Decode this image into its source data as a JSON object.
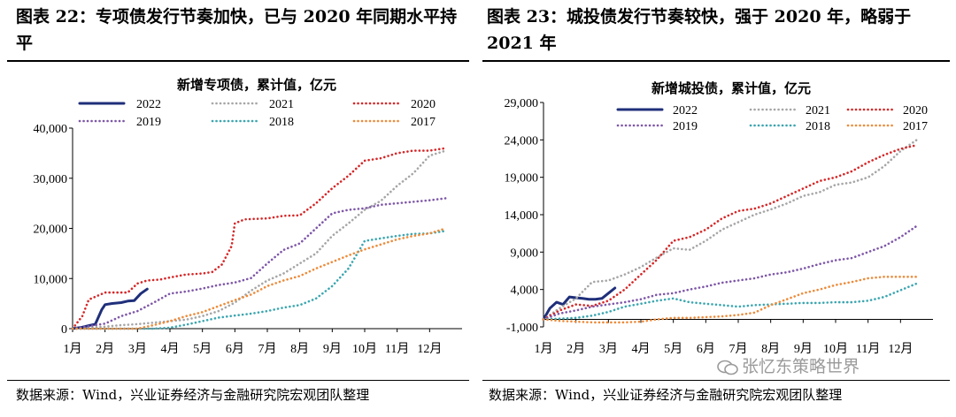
{
  "left": {
    "figure_title": "图表 22：专项债发行节奏加快，已与 2020 年同期水平持平",
    "source": "数据来源：Wind，兴业证券经济与金融研究院宏观团队整理"
  },
  "right": {
    "figure_title": "图表 23：城投债发行节奏较快，强于 2020 年，略弱于 2021 年",
    "source": "数据来源：Wind，兴业证券经济与金融研究院宏观团队整理"
  },
  "watermark": "张忆东策略世界",
  "colors": {
    "2022": "#1f2f7a",
    "2021": "#a6a6a6",
    "2020": "#d62728",
    "2019": "#7e57a8",
    "2018": "#3aa6b0",
    "2017": "#ed8b3a"
  },
  "chart_data": [
    {
      "type": "line",
      "title": "新增专项债，累计值，亿元",
      "categories": [
        "1月",
        "2月",
        "3月",
        "4月",
        "5月",
        "6月",
        "7月",
        "8月",
        "9月",
        "10月",
        "11月",
        "12月"
      ],
      "ylim": [
        0,
        40000
      ],
      "yticks": [
        0,
        10000,
        20000,
        30000,
        40000
      ],
      "ytick_labels": [
        "0",
        "10,000",
        "20,000",
        "30,000",
        "40,000"
      ],
      "legend_order": [
        "2022",
        "2021",
        "2020",
        "2019",
        "2018",
        "2017"
      ],
      "series": [
        {
          "name": "2022",
          "x": [
            1.0,
            1.3,
            1.5,
            1.7,
            1.9,
            2.0,
            2.2,
            2.5,
            2.7,
            2.9,
            3.1,
            3.3
          ],
          "values": [
            0,
            300,
            600,
            900,
            3800,
            4800,
            5000,
            5200,
            5500,
            5600,
            7000,
            7900
          ]
        },
        {
          "name": "2021",
          "x": [
            1,
            1.5,
            2,
            2.5,
            3,
            3.5,
            4,
            4.5,
            5,
            5.5,
            6,
            6.5,
            7,
            7.5,
            8,
            8.5,
            9,
            9.5,
            10,
            10.5,
            11,
            11.5,
            12,
            12.5
          ],
          "values": [
            0,
            200,
            400,
            700,
            900,
            1200,
            1500,
            1800,
            2500,
            3500,
            5200,
            7600,
            9600,
            11000,
            13000,
            15000,
            18500,
            21000,
            23700,
            25500,
            28500,
            31000,
            34500,
            35500
          ]
        },
        {
          "name": "2020",
          "x": [
            1,
            1.3,
            1.5,
            2,
            2.3,
            2.7,
            3,
            3.3,
            3.7,
            4,
            4.5,
            5,
            5.3,
            5.6,
            5.9,
            6,
            6.3,
            7,
            7.5,
            8,
            8.5,
            9,
            9.5,
            10,
            10.5,
            11,
            11.5,
            12,
            12.5
          ],
          "values": [
            0,
            2500,
            5800,
            7200,
            7200,
            7200,
            9000,
            9600,
            9800,
            10200,
            10800,
            11000,
            11300,
            12800,
            16500,
            21000,
            21800,
            22000,
            22500,
            22600,
            25000,
            28000,
            30500,
            33500,
            34000,
            35000,
            35500,
            35500,
            36000
          ]
        },
        {
          "name": "2019",
          "x": [
            1,
            1.5,
            2,
            2.5,
            3,
            3.5,
            4,
            4.5,
            5,
            5.5,
            6,
            6.5,
            7,
            7.5,
            8,
            8.5,
            9,
            9.5,
            10,
            10.5,
            11,
            11.5,
            12,
            12.5
          ],
          "values": [
            0,
            500,
            1000,
            2500,
            3500,
            5200,
            7000,
            7400,
            8000,
            8700,
            9200,
            10100,
            13000,
            15700,
            17000,
            20000,
            23000,
            23700,
            24000,
            24700,
            25000,
            25300,
            25600,
            26000
          ]
        },
        {
          "name": "2018",
          "x": [
            1,
            2,
            3,
            3.5,
            4,
            4.5,
            5,
            5.5,
            6,
            6.5,
            7,
            7.5,
            8,
            8.5,
            9,
            9.5,
            10,
            10.5,
            11,
            11.5,
            12,
            12.5
          ],
          "values": [
            0,
            0,
            0,
            0,
            200,
            800,
            1500,
            2200,
            2600,
            3000,
            3500,
            4200,
            4700,
            6000,
            8500,
            12000,
            17500,
            18000,
            18500,
            18900,
            19000,
            19500
          ]
        },
        {
          "name": "2017",
          "x": [
            1,
            2,
            3,
            3.5,
            4,
            4.5,
            5,
            5.5,
            6,
            6.5,
            7,
            7.5,
            8,
            8.5,
            9,
            9.5,
            10,
            10.5,
            11,
            11.5,
            12,
            12.5
          ],
          "values": [
            0,
            0,
            0,
            700,
            1500,
            2500,
            3300,
            4500,
            5700,
            6800,
            8500,
            9600,
            10500,
            12000,
            13300,
            14600,
            15800,
            16800,
            17800,
            18500,
            19000,
            20000
          ]
        }
      ]
    },
    {
      "type": "line",
      "title": "新增城投债，累计值，亿元",
      "categories": [
        "1月",
        "2月",
        "3月",
        "4月",
        "5月",
        "6月",
        "7月",
        "8月",
        "9月",
        "10月",
        "11月",
        "12月"
      ],
      "ylim": [
        -1000,
        29000
      ],
      "yticks": [
        -1000,
        4000,
        9000,
        14000,
        19000,
        24000,
        29000
      ],
      "ytick_labels": [
        "-1,000",
        "4,000",
        "9,000",
        "14,000",
        "19,000",
        "24,000",
        "29,000"
      ],
      "legend_order": [
        "2022",
        "2021",
        "2020",
        "2019",
        "2018",
        "2017"
      ],
      "series": [
        {
          "name": "2022",
          "x": [
            1.0,
            1.2,
            1.4,
            1.6,
            1.8,
            2.0,
            2.2,
            2.4,
            2.6,
            2.8,
            3.0,
            3.2
          ],
          "values": [
            0,
            1500,
            2300,
            2000,
            3000,
            2900,
            2800,
            2700,
            2700,
            2800,
            3500,
            4200
          ]
        },
        {
          "name": "2021",
          "x": [
            1,
            1.5,
            2,
            2.5,
            3,
            3.5,
            4,
            4.5,
            5,
            5.5,
            6,
            6.5,
            7,
            7.5,
            8,
            8.5,
            9,
            9.5,
            10,
            10.5,
            11,
            11.5,
            12,
            12.5
          ],
          "values": [
            0,
            1500,
            2800,
            5000,
            5200,
            6000,
            7000,
            8300,
            9500,
            9300,
            10500,
            12000,
            13000,
            14000,
            14700,
            15500,
            16500,
            17000,
            18000,
            18300,
            19000,
            20500,
            22500,
            24000
          ]
        },
        {
          "name": "2020",
          "x": [
            1,
            1.5,
            2,
            2.5,
            3,
            3.5,
            4,
            4.5,
            5,
            5.5,
            6,
            6.5,
            7,
            7.5,
            8,
            8.5,
            9,
            9.5,
            10,
            10.5,
            11,
            11.5,
            12,
            12.5
          ],
          "values": [
            0,
            1200,
            2000,
            1800,
            2500,
            4000,
            6000,
            8000,
            10500,
            11000,
            12000,
            13500,
            14500,
            14800,
            15500,
            16500,
            17500,
            18500,
            19000,
            19800,
            21000,
            22000,
            22800,
            23300
          ]
        },
        {
          "name": "2019",
          "x": [
            1,
            1.5,
            2,
            2.5,
            3,
            3.5,
            4,
            4.5,
            5,
            5.5,
            6,
            6.5,
            7,
            7.5,
            8,
            8.5,
            9,
            9.5,
            10,
            10.5,
            11,
            11.5,
            12,
            12.5
          ],
          "values": [
            0,
            800,
            1200,
            1700,
            2000,
            2300,
            2700,
            3300,
            3500,
            4000,
            4400,
            4900,
            5200,
            5500,
            6000,
            6300,
            6800,
            7400,
            7900,
            8200,
            9000,
            9800,
            11000,
            12500
          ]
        },
        {
          "name": "2018",
          "x": [
            1,
            1.5,
            2,
            2.5,
            3,
            3.5,
            4,
            4.5,
            5,
            5.5,
            6,
            6.5,
            7,
            7.5,
            8,
            8.5,
            9,
            9.5,
            10,
            10.5,
            11,
            11.5,
            12,
            12.5
          ],
          "values": [
            0,
            100,
            200,
            500,
            1000,
            1700,
            2100,
            2500,
            2800,
            2300,
            2100,
            1900,
            1700,
            1900,
            2000,
            2100,
            2200,
            2200,
            2300,
            2300,
            2500,
            3000,
            3900,
            4800
          ]
        },
        {
          "name": "2017",
          "x": [
            1,
            1.5,
            2,
            2.5,
            3,
            3.5,
            4,
            4.5,
            5,
            5.5,
            6,
            6.5,
            7,
            7.5,
            8,
            8.5,
            9,
            9.5,
            10,
            10.5,
            11,
            11.5,
            12,
            12.5
          ],
          "values": [
            0,
            -200,
            -300,
            -400,
            -400,
            -400,
            -300,
            0,
            200,
            200,
            300,
            400,
            600,
            900,
            1900,
            2700,
            3500,
            4000,
            4600,
            5000,
            5500,
            5700,
            5700,
            5700
          ]
        }
      ]
    }
  ]
}
